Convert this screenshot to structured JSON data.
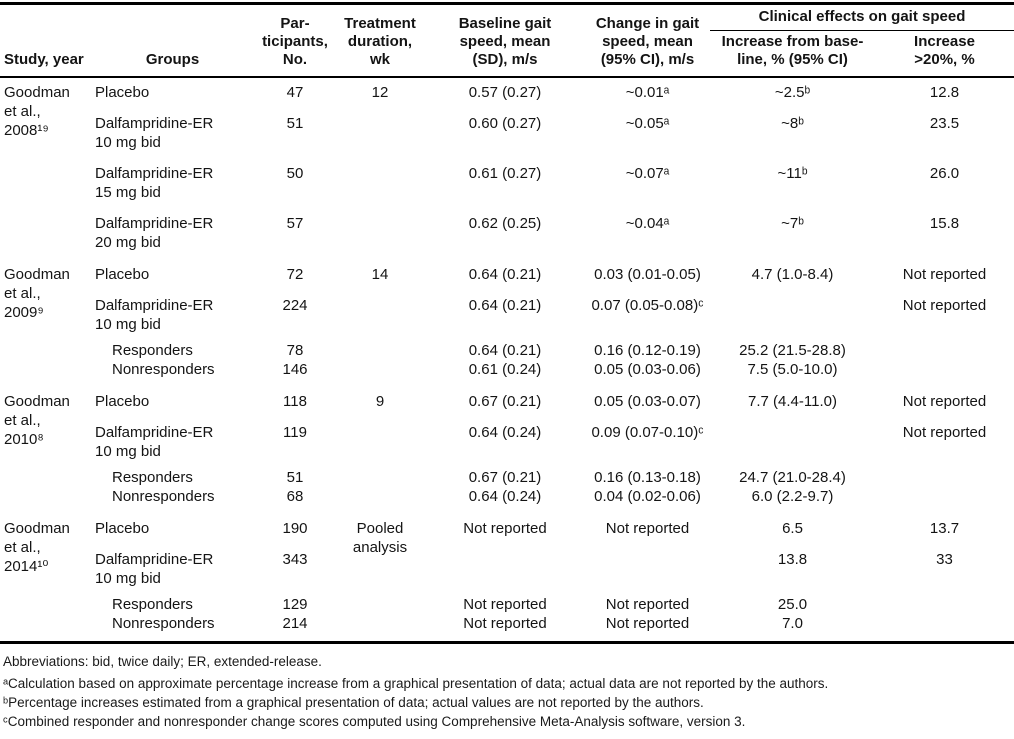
{
  "colors": {
    "background": "#ffffff",
    "text": "#141414",
    "rule": "#000000"
  },
  "table": {
    "header": {
      "study": "Study, year",
      "groups": "Groups",
      "participants": "Par-\nticipants,\nNo.",
      "duration": "Treatment\nduration,\nwk",
      "baseline": "Baseline gait\nspeed, mean\n(SD), m/s",
      "change": "Change in gait\nspeed, mean\n(95% CI), m/s",
      "clinical_spanner": "Clinical effects on gait speed",
      "increase_baseline": "Increase from base-\nline, % (95% CI)",
      "increase_20": "Increase\n>20%, %"
    },
    "sections": [
      {
        "study": "Goodman\net al.,\n2008¹⁹",
        "rows": [
          {
            "tight": false,
            "cells": [
              {
                "col": "group",
                "text": "Placebo"
              },
              {
                "col": "n",
                "text": "47"
              },
              {
                "col": "duration",
                "text": "12"
              },
              {
                "col": "baseline",
                "text": "0.57 (0.27)"
              },
              {
                "col": "change",
                "text": "~0.01ᵃ"
              },
              {
                "col": "inc",
                "text": "~2.5ᵇ"
              },
              {
                "col": "inc20",
                "text": "12.8"
              }
            ]
          },
          {
            "tight": false,
            "cells": [
              {
                "col": "group",
                "text": "Dalfampridine-ER\n10 mg bid"
              },
              {
                "col": "n",
                "text": "51"
              },
              {
                "col": "duration",
                "text": ""
              },
              {
                "col": "baseline",
                "text": "0.60 (0.27)"
              },
              {
                "col": "change",
                "text": "~0.05ᵃ"
              },
              {
                "col": "inc",
                "text": "~8ᵇ"
              },
              {
                "col": "inc20",
                "text": "23.5"
              }
            ]
          },
          {
            "tight": false,
            "cells": [
              {
                "col": "group",
                "text": "Dalfampridine-ER\n15 mg bid"
              },
              {
                "col": "n",
                "text": "50"
              },
              {
                "col": "duration",
                "text": ""
              },
              {
                "col": "baseline",
                "text": "0.61 (0.27)"
              },
              {
                "col": "change",
                "text": "~0.07ᵃ"
              },
              {
                "col": "inc",
                "text": "~11ᵇ"
              },
              {
                "col": "inc20",
                "text": "26.0"
              }
            ]
          },
          {
            "tight": false,
            "cells": [
              {
                "col": "group",
                "text": "Dalfampridine-ER\n20 mg bid"
              },
              {
                "col": "n",
                "text": "57"
              },
              {
                "col": "duration",
                "text": ""
              },
              {
                "col": "baseline",
                "text": "0.62 (0.25)"
              },
              {
                "col": "change",
                "text": "~0.04ᵃ"
              },
              {
                "col": "inc",
                "text": "~7ᵇ"
              },
              {
                "col": "inc20",
                "text": "15.8"
              }
            ]
          }
        ]
      },
      {
        "study": "Goodman\net al.,\n2009⁹",
        "rows": [
          {
            "tight": false,
            "cells": [
              {
                "col": "group",
                "text": "Placebo"
              },
              {
                "col": "n",
                "text": "72"
              },
              {
                "col": "duration",
                "text": "14"
              },
              {
                "col": "baseline",
                "text": "0.64 (0.21)"
              },
              {
                "col": "change",
                "text": "0.03 (0.01-0.05)"
              },
              {
                "col": "inc",
                "text": "4.7 (1.0-8.4)"
              },
              {
                "col": "inc20",
                "text": "Not reported"
              }
            ]
          },
          {
            "tight": false,
            "cells": [
              {
                "col": "group",
                "text": "Dalfampridine-ER\n10 mg bid"
              },
              {
                "col": "n",
                "text": "224"
              },
              {
                "col": "duration",
                "text": ""
              },
              {
                "col": "baseline",
                "text": "0.64 (0.21)"
              },
              {
                "col": "change",
                "text": "0.07 (0.05-0.08)ᶜ"
              },
              {
                "col": "inc",
                "text": ""
              },
              {
                "col": "inc20",
                "text": "Not reported"
              }
            ]
          },
          {
            "tight": true,
            "cells": [
              {
                "col": "group",
                "text": "Responders",
                "indent": true
              },
              {
                "col": "n",
                "text": "78"
              },
              {
                "col": "duration",
                "text": ""
              },
              {
                "col": "baseline",
                "text": "0.64 (0.21)"
              },
              {
                "col": "change",
                "text": "0.16 (0.12-0.19)"
              },
              {
                "col": "inc",
                "text": "25.2 (21.5-28.8)"
              },
              {
                "col": "inc20",
                "text": ""
              }
            ]
          },
          {
            "tight": true,
            "cells": [
              {
                "col": "group",
                "text": "Nonresponders",
                "indent": true
              },
              {
                "col": "n",
                "text": "146"
              },
              {
                "col": "duration",
                "text": ""
              },
              {
                "col": "baseline",
                "text": "0.61 (0.24)"
              },
              {
                "col": "change",
                "text": "0.05 (0.03-0.06)"
              },
              {
                "col": "inc",
                "text": "7.5 (5.0-10.0)"
              },
              {
                "col": "inc20",
                "text": ""
              }
            ]
          }
        ]
      },
      {
        "study": "Goodman\net al.,\n2010⁸",
        "rows": [
          {
            "tight": false,
            "cells": [
              {
                "col": "group",
                "text": "Placebo"
              },
              {
                "col": "n",
                "text": "118"
              },
              {
                "col": "duration",
                "text": "9"
              },
              {
                "col": "baseline",
                "text": "0.67 (0.21)"
              },
              {
                "col": "change",
                "text": "0.05 (0.03-0.07)"
              },
              {
                "col": "inc",
                "text": "7.7 (4.4-11.0)"
              },
              {
                "col": "inc20",
                "text": "Not reported"
              }
            ]
          },
          {
            "tight": false,
            "cells": [
              {
                "col": "group",
                "text": "Dalfampridine-ER\n10 mg bid"
              },
              {
                "col": "n",
                "text": "119"
              },
              {
                "col": "duration",
                "text": ""
              },
              {
                "col": "baseline",
                "text": "0.64 (0.24)"
              },
              {
                "col": "change",
                "text": "0.09 (0.07-0.10)ᶜ"
              },
              {
                "col": "inc",
                "text": ""
              },
              {
                "col": "inc20",
                "text": "Not reported"
              }
            ]
          },
          {
            "tight": true,
            "cells": [
              {
                "col": "group",
                "text": "Responders",
                "indent": true
              },
              {
                "col": "n",
                "text": "51"
              },
              {
                "col": "duration",
                "text": ""
              },
              {
                "col": "baseline",
                "text": "0.67 (0.21)"
              },
              {
                "col": "change",
                "text": "0.16 (0.13-0.18)"
              },
              {
                "col": "inc",
                "text": "24.7 (21.0-28.4)"
              },
              {
                "col": "inc20",
                "text": ""
              }
            ]
          },
          {
            "tight": true,
            "cells": [
              {
                "col": "group",
                "text": "Nonresponders",
                "indent": true
              },
              {
                "col": "n",
                "text": "68"
              },
              {
                "col": "duration",
                "text": ""
              },
              {
                "col": "baseline",
                "text": "0.64 (0.24)"
              },
              {
                "col": "change",
                "text": "0.04 (0.02-0.06)"
              },
              {
                "col": "inc",
                "text": "6.0 (2.2-9.7)"
              },
              {
                "col": "inc20",
                "text": ""
              }
            ]
          }
        ]
      },
      {
        "study": "Goodman\net al.,\n2014¹⁰",
        "rows": [
          {
            "tight": false,
            "cells": [
              {
                "col": "group",
                "text": "Placebo"
              },
              {
                "col": "n",
                "text": "190"
              },
              {
                "col": "duration",
                "text": "Pooled\nanalysis",
                "rowspan": 2
              },
              {
                "col": "baseline",
                "text": "Not reported"
              },
              {
                "col": "change",
                "text": "Not reported"
              },
              {
                "col": "inc",
                "text": "6.5"
              },
              {
                "col": "inc20",
                "text": "13.7"
              }
            ]
          },
          {
            "tight": false,
            "cells": [
              {
                "col": "group",
                "text": "Dalfampridine-ER\n10 mg bid"
              },
              {
                "col": "n",
                "text": "343"
              },
              {
                "col": "baseline",
                "text": ""
              },
              {
                "col": "change",
                "text": ""
              },
              {
                "col": "inc",
                "text": "13.8"
              },
              {
                "col": "inc20",
                "text": "33"
              }
            ]
          },
          {
            "tight": true,
            "cells": [
              {
                "col": "group",
                "text": "Responders",
                "indent": true
              },
              {
                "col": "n",
                "text": "129"
              },
              {
                "col": "duration",
                "text": ""
              },
              {
                "col": "baseline",
                "text": "Not reported"
              },
              {
                "col": "change",
                "text": "Not reported"
              },
              {
                "col": "inc",
                "text": "25.0"
              },
              {
                "col": "inc20",
                "text": ""
              }
            ]
          },
          {
            "tight": true,
            "cells": [
              {
                "col": "group",
                "text": "Nonresponders",
                "indent": true
              },
              {
                "col": "n",
                "text": "214"
              },
              {
                "col": "duration",
                "text": ""
              },
              {
                "col": "baseline",
                "text": "Not reported"
              },
              {
                "col": "change",
                "text": "Not reported"
              },
              {
                "col": "inc",
                "text": "7.0"
              },
              {
                "col": "inc20",
                "text": ""
              }
            ]
          }
        ]
      }
    ]
  },
  "footnotes": [
    "Abbreviations: bid, twice daily; ER, extended-release.",
    "ᵃCalculation based on approximate percentage increase from a graphical presentation of data; actual data are not reported by the authors.",
    "ᵇPercentage increases estimated from a graphical presentation of data; actual values are not reported by the authors.",
    "ᶜCombined responder and nonresponder change scores computed using Comprehensive Meta-Analysis software, version 3."
  ]
}
